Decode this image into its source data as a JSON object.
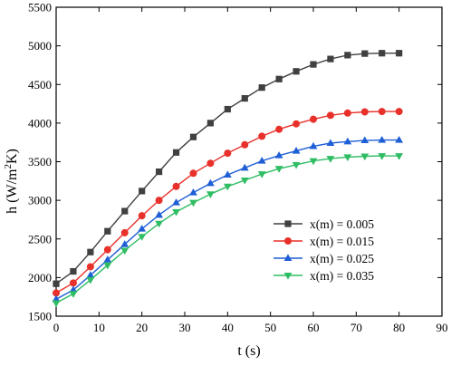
{
  "chart_data": {
    "type": "line",
    "xlabel": "t (s)",
    "ylabel_main": "h (W/m",
    "ylabel_sup": "2",
    "ylabel_end": "K)",
    "xlim": [
      0,
      90
    ],
    "ylim": [
      1500,
      5500
    ],
    "xticks": [
      0,
      10,
      20,
      30,
      40,
      50,
      60,
      70,
      80,
      90
    ],
    "yticks": [
      1500,
      2000,
      2500,
      3000,
      3500,
      4000,
      4500,
      5000,
      5500
    ],
    "grid": false,
    "legend_position": "center-right",
    "x": [
      0,
      4,
      8,
      12,
      16,
      20,
      24,
      28,
      32,
      36,
      40,
      44,
      48,
      52,
      56,
      60,
      64,
      68,
      72,
      76,
      80
    ],
    "series": [
      {
        "name": "x(m) = 0.005",
        "color": "#404040",
        "marker": "square",
        "values": [
          1920,
          2080,
          2330,
          2600,
          2860,
          3120,
          3370,
          3620,
          3820,
          4000,
          4180,
          4320,
          4460,
          4570,
          4670,
          4760,
          4830,
          4880,
          4900,
          4905,
          4905
        ]
      },
      {
        "name": "x(m) = 0.015",
        "color": "#e8312a",
        "marker": "circle",
        "values": [
          1800,
          1930,
          2140,
          2360,
          2580,
          2800,
          3000,
          3180,
          3350,
          3480,
          3610,
          3720,
          3830,
          3920,
          3990,
          4050,
          4100,
          4130,
          4145,
          4150,
          4150
        ]
      },
      {
        "name": "x(m) = 0.025",
        "color": "#1f5fd6",
        "marker": "triangle-up",
        "values": [
          1720,
          1840,
          2030,
          2230,
          2430,
          2630,
          2810,
          2970,
          3100,
          3220,
          3330,
          3420,
          3510,
          3580,
          3640,
          3700,
          3740,
          3760,
          3775,
          3780,
          3780
        ]
      },
      {
        "name": "x(m) = 0.035",
        "color": "#2fbd63",
        "marker": "triangle-down",
        "values": [
          1670,
          1790,
          1970,
          2160,
          2350,
          2530,
          2700,
          2850,
          2970,
          3080,
          3180,
          3260,
          3340,
          3410,
          3460,
          3510,
          3540,
          3560,
          3570,
          3575,
          3575
        ]
      }
    ]
  }
}
